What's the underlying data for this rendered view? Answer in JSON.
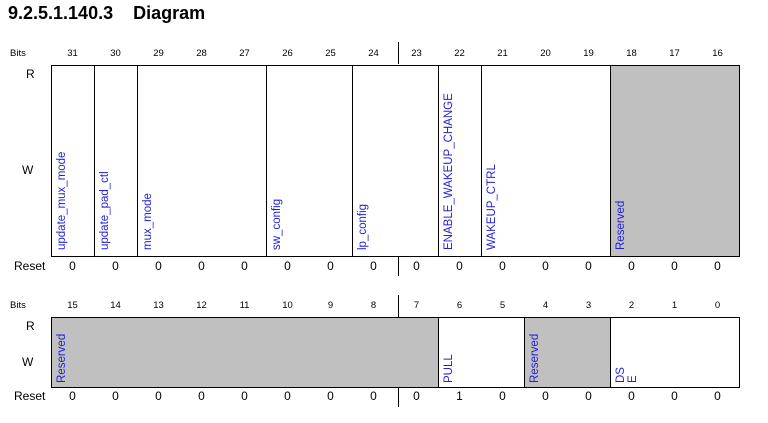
{
  "title": "9.2.5.1.140.3    Diagram",
  "labels": {
    "bits": "Bits",
    "r": "R",
    "w": "W",
    "reset": "Reset"
  },
  "upper": {
    "bits": [
      "31",
      "30",
      "29",
      "28",
      "27",
      "26",
      "25",
      "24",
      "23",
      "22",
      "21",
      "20",
      "19",
      "18",
      "17",
      "16"
    ],
    "fields": [
      {
        "label": "update_mux_mode",
        "from": 31,
        "to": 31,
        "reserved": false
      },
      {
        "label": "update_pad_ctl",
        "from": 30,
        "to": 30,
        "reserved": false
      },
      {
        "label": "mux_mode",
        "from": 29,
        "to": 27,
        "reserved": false
      },
      {
        "label": "sw_config",
        "from": 26,
        "to": 25,
        "reserved": false
      },
      {
        "label": "lp_config",
        "from": 24,
        "to": 23,
        "reserved": false
      },
      {
        "label": "ENABLE_WAKEUP_CHANGE",
        "from": 22,
        "to": 22,
        "reserved": false
      },
      {
        "label": "WAKEUP_CTRL",
        "from": 21,
        "to": 19,
        "reserved": false
      },
      {
        "label": "Reserved",
        "from": 18,
        "to": 16,
        "reserved": true
      }
    ],
    "reset": [
      "0",
      "0",
      "0",
      "0",
      "0",
      "0",
      "0",
      "0",
      "0",
      "0",
      "0",
      "0",
      "0",
      "0",
      "0",
      "0"
    ]
  },
  "lower": {
    "bits": [
      "15",
      "14",
      "13",
      "12",
      "11",
      "10",
      "9",
      "8",
      "7",
      "6",
      "5",
      "4",
      "3",
      "2",
      "1",
      "0"
    ],
    "fields": [
      {
        "label": "Reserved",
        "from": 15,
        "to": 7,
        "reserved": true
      },
      {
        "label": "PULL",
        "from": 6,
        "to": 5,
        "reserved": false
      },
      {
        "label": "Reserved",
        "from": 4,
        "to": 3,
        "reserved": true
      },
      {
        "label": "DS\nE",
        "from": 2,
        "to": 0,
        "reserved": false
      }
    ],
    "reset": [
      "0",
      "0",
      "0",
      "0",
      "0",
      "0",
      "0",
      "0",
      "0",
      "1",
      "0",
      "0",
      "0",
      "0",
      "0",
      "0"
    ]
  }
}
